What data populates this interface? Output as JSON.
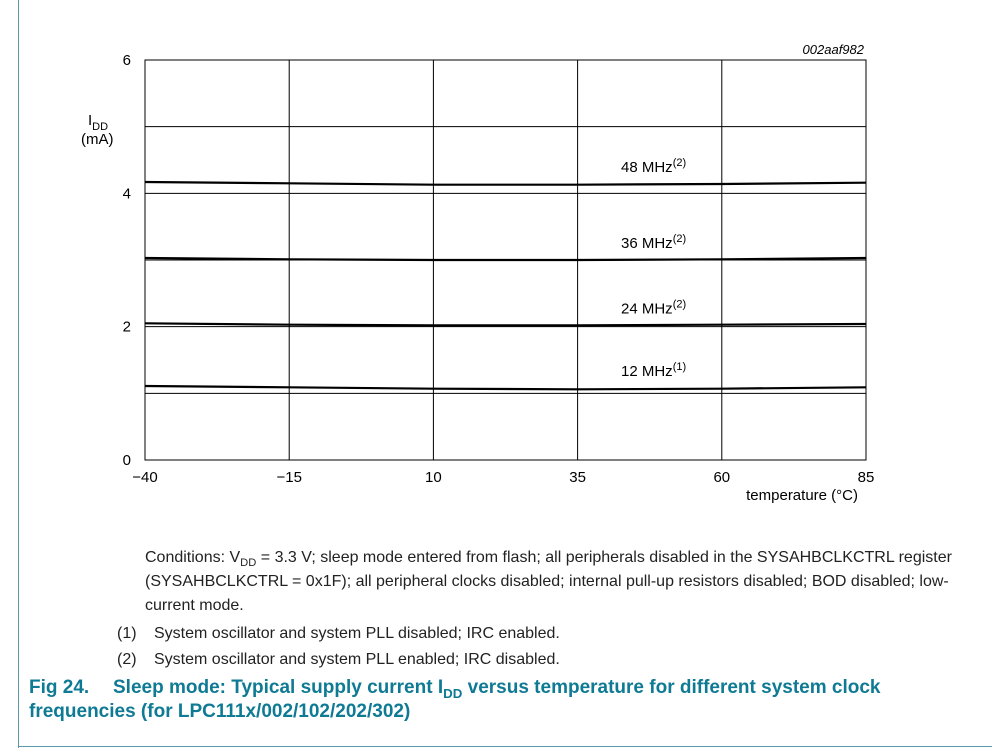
{
  "chart_data": {
    "type": "line",
    "figure_code": "002aaf982",
    "ylabel_main": "I",
    "ylabel_sub": "DD",
    "ylabel_unit": "(mA)",
    "xlabel": "temperature (°C)",
    "x_ticks": [
      -40,
      -15,
      10,
      35,
      60,
      85
    ],
    "x_tick_labels": [
      "−40",
      "−15",
      "10",
      "35",
      "60",
      "85"
    ],
    "y_ticks": [
      0,
      2,
      4,
      6
    ],
    "y_tick_labels": [
      "0",
      "2",
      "4",
      "6"
    ],
    "xlim": [
      -40,
      85
    ],
    "ylim": [
      0,
      6
    ],
    "grid": true,
    "series": [
      {
        "name": "48 MHz",
        "note": "(2)",
        "x": [
          -40,
          -15,
          10,
          35,
          60,
          85
        ],
        "values": [
          4.17,
          4.15,
          4.13,
          4.13,
          4.14,
          4.16
        ]
      },
      {
        "name": "36 MHz",
        "note": "(2)",
        "x": [
          -40,
          -15,
          10,
          35,
          60,
          85
        ],
        "values": [
          3.03,
          3.01,
          3.0,
          3.0,
          3.01,
          3.03
        ]
      },
      {
        "name": "24 MHz",
        "note": "(2)",
        "x": [
          -40,
          -15,
          10,
          35,
          60,
          85
        ],
        "values": [
          2.05,
          2.03,
          2.02,
          2.02,
          2.03,
          2.04
        ]
      },
      {
        "name": "12 MHz",
        "note": "(1)",
        "x": [
          -40,
          -15,
          10,
          35,
          60,
          85
        ],
        "values": [
          1.11,
          1.09,
          1.07,
          1.06,
          1.07,
          1.09
        ]
      }
    ]
  },
  "caption": {
    "conditions_prefix": "Conditions: V",
    "conditions_sub": "DD",
    "conditions_rest": " = 3.3 V; sleep mode entered from flash; all peripherals disabled in the SYSAHBCLKCTRL register (SYSAHBCLKCTRL = 0x1F); all peripheral clocks disabled; internal pull-up resistors disabled; BOD disabled; low-current mode.",
    "note1_num": "(1)",
    "note1_text": "System oscillator and system PLL disabled; IRC enabled.",
    "note2_num": "(2)",
    "note2_text": "System oscillator and system PLL enabled; IRC disabled.",
    "fig_number": "Fig 24.",
    "fig_title_a": "Sleep mode: Typical supply current I",
    "fig_title_sub": "DD",
    "fig_title_b": " versus temperature for different system clock frequencies (for LPC111x/002/102/202/302)"
  }
}
